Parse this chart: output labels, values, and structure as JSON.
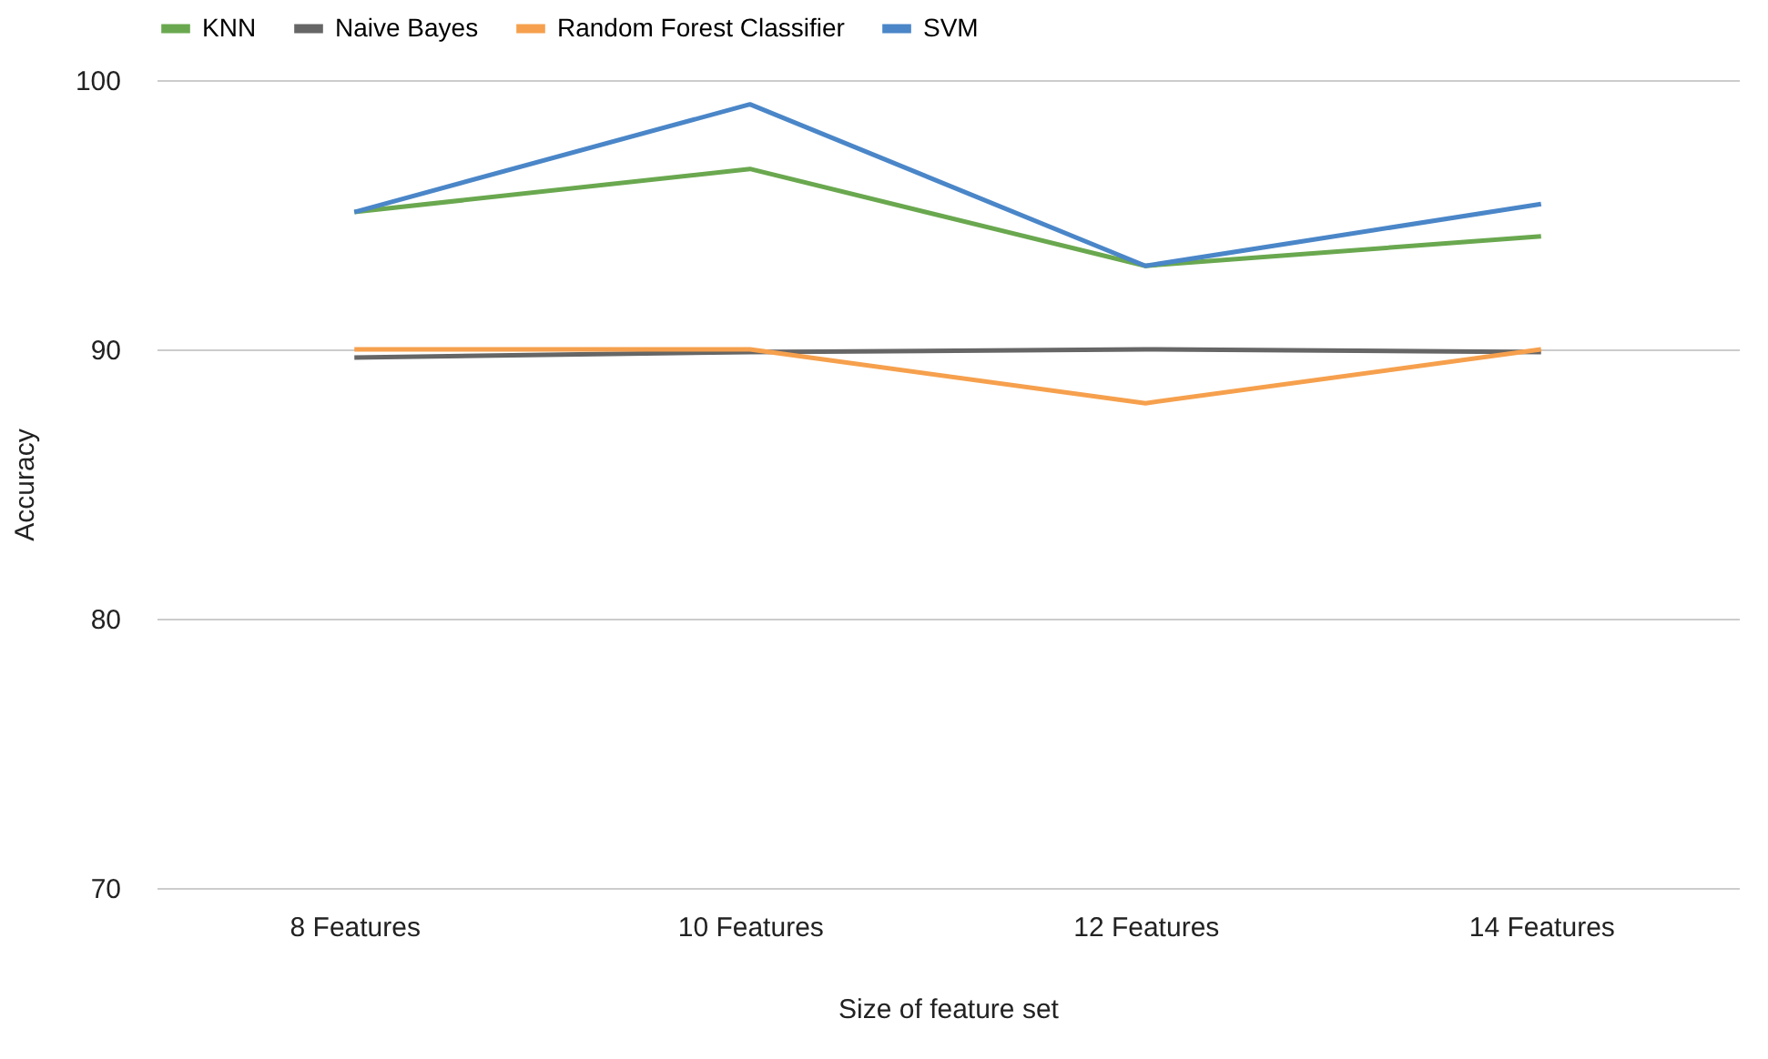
{
  "chart_data": {
    "type": "line",
    "xlabel": "Size of feature set",
    "ylabel": "Accuracy",
    "categories": [
      "8 Features",
      "10 Features",
      "12 Features",
      "14 Features"
    ],
    "series": [
      {
        "name": "KNN",
        "color": "#6aa84f",
        "values": [
          95.1,
          96.7,
          93.1,
          94.2
        ]
      },
      {
        "name": "Naive Bayes",
        "color": "#666666",
        "values": [
          89.7,
          89.9,
          90.0,
          89.9
        ]
      },
      {
        "name": "Random Forest Classifier",
        "color": "#f6a04d",
        "values": [
          90.0,
          90.0,
          88.0,
          90.0
        ]
      },
      {
        "name": "SVM",
        "color": "#4a86c8",
        "values": [
          95.1,
          99.1,
          93.1,
          95.4
        ]
      }
    ],
    "ylim": [
      70,
      100
    ],
    "yticks": [
      70,
      80,
      90,
      100
    ],
    "grid": "y",
    "legend": "top",
    "marker": "none",
    "line_style": "solid"
  }
}
